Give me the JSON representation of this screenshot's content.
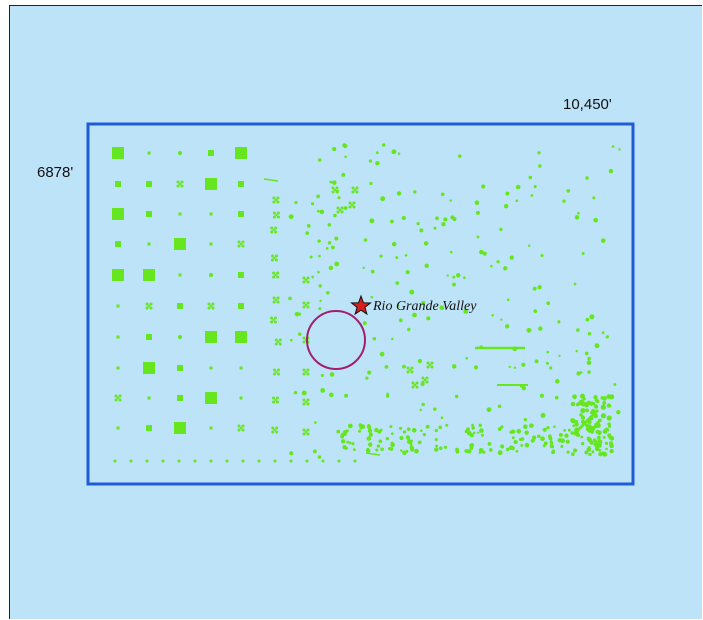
{
  "map": {
    "width_label": "10,450'",
    "height_label": "6878'",
    "place_name": "Rio Grande Valley",
    "colors": {
      "water": "#bde3f9",
      "boundary": "#1e5bd6",
      "vegetation": "#66e61e",
      "circle": "#a0206e",
      "star_fill": "#d81e1e"
    },
    "icons": [
      "star-icon",
      "circle-marker-icon",
      "tree-dot-icon",
      "square-plot-icon"
    ]
  }
}
